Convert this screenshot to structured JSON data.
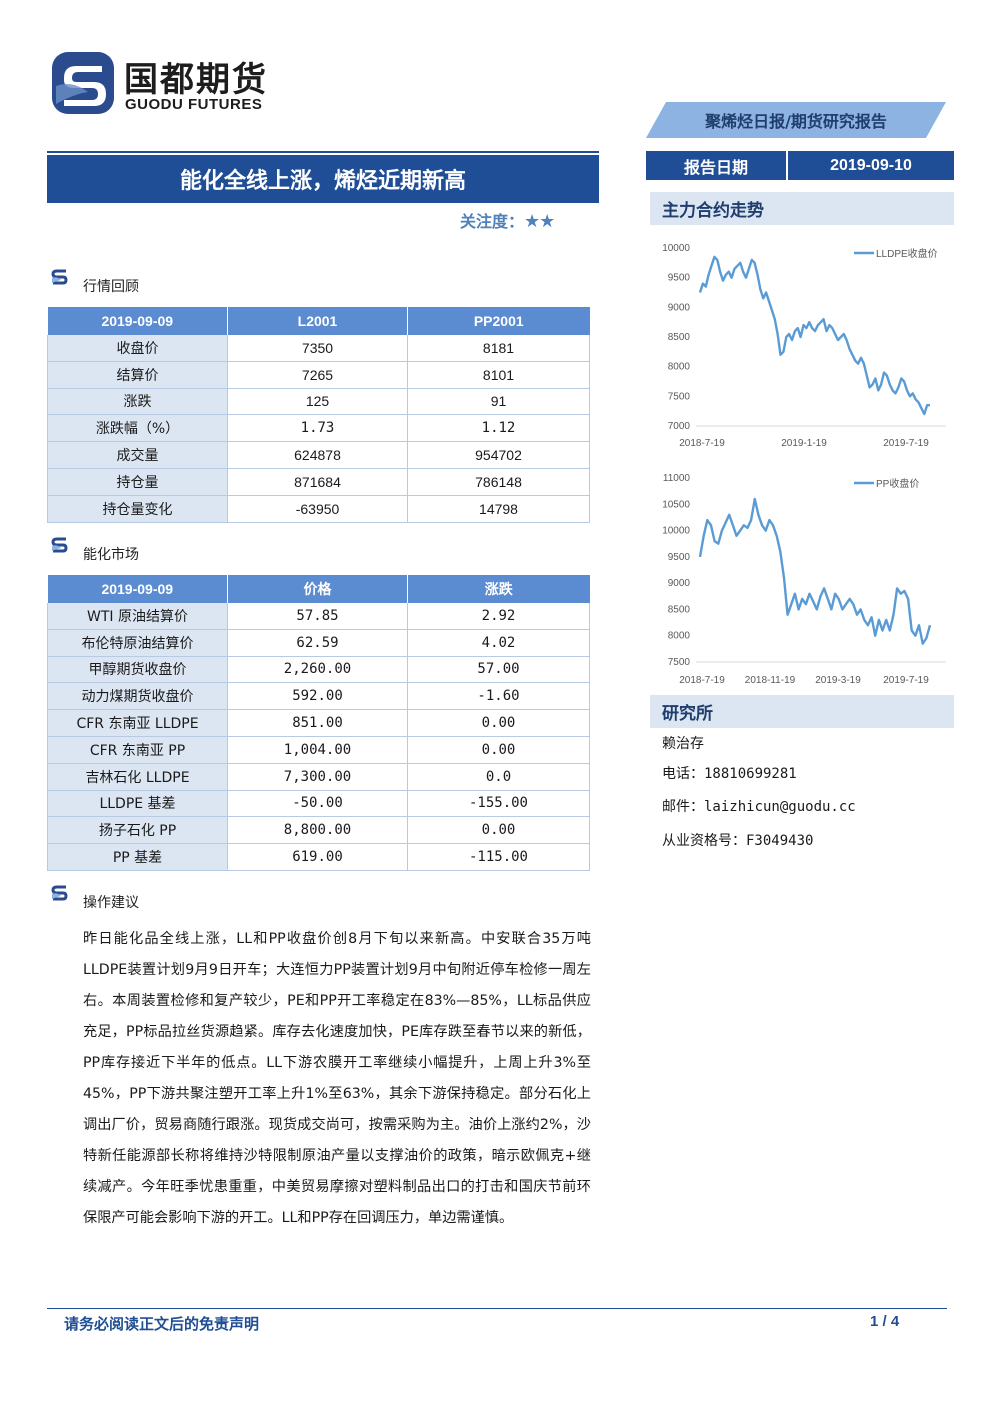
{
  "header": {
    "logo_cn": "国都期货",
    "logo_en": "GUODU FUTURES",
    "report_type": "聚烯烃日报/期货研究报告",
    "date_label": "报告日期",
    "date_value": "2019-09-10"
  },
  "title": {
    "main": "能化全线上涨，烯烃近期新高",
    "attention_label": "关注度：",
    "attention_stars": "★★"
  },
  "market_review": {
    "section_title": "行情回顾",
    "headers": [
      "2019-09-09",
      "L2001",
      "PP2001"
    ],
    "rows": [
      [
        "收盘价",
        "7350",
        "8181"
      ],
      [
        "结算价",
        "7265",
        "8101"
      ],
      [
        "涨跌",
        "125",
        "91"
      ],
      [
        "涨跌幅（%）",
        "1.73",
        "1.12"
      ],
      [
        "成交量",
        "624878",
        "954702"
      ],
      [
        "持仓量",
        "871684",
        "786148"
      ],
      [
        "持仓量变化",
        "-63950",
        "14798"
      ]
    ]
  },
  "energy_market": {
    "section_title": "能化市场",
    "headers": [
      "2019-09-09",
      "价格",
      "涨跌"
    ],
    "rows": [
      [
        "WTI 原油结算价",
        "57.85",
        "2.92"
      ],
      [
        "布伦特原油结算价",
        "62.59",
        "4.02"
      ],
      [
        "甲醇期货收盘价",
        "2,260.00",
        "57.00"
      ],
      [
        "动力煤期货收盘价",
        "592.00",
        "-1.60"
      ],
      [
        "CFR 东南亚 LLDPE",
        "851.00",
        "0.00"
      ],
      [
        "CFR 东南亚 PP",
        "1,004.00",
        "0.00"
      ],
      [
        "吉林石化 LLDPE",
        "7,300.00",
        "0.0"
      ],
      [
        "LLDPE 基差",
        "-50.00",
        "-155.00"
      ],
      [
        "扬子石化 PP",
        "8,800.00",
        "0.00"
      ],
      [
        "PP 基差",
        "619.00",
        "-115.00"
      ]
    ]
  },
  "advice": {
    "section_title": "操作建议",
    "text": "昨日能化品全线上涨，LL和PP收盘价创8月下旬以来新高。中安联合35万吨LLDPE装置计划9月9日开车；大连恒力PP装置计划9月中旬附近停车检修一周左右。本周装置检修和复产较少，PE和PP开工率稳定在83%—85%，LL标品供应充足，PP标品拉丝货源趋紧。库存去化速度加快，PE库存跌至春节以来的新低，PP库存接近下半年的低点。LL下游农膜开工率继续小幅提升，上周上升3%至45%，PP下游共聚注塑开工率上升1%至63%，其余下游保持稳定。部分石化上调出厂价，贸易商随行跟涨。现货成交尚可，按需采购为主。油价上涨约2%，沙特新任能源部长称将维持沙特限制原油产量以支撑油价的政策，暗示欧佩克+继续减产。今年旺季忧患重重，中美贸易摩擦对塑料制品出口的打击和国庆节前环保限产可能会影响下游的开工。LL和PP存在回调压力，单边需谨慎。"
  },
  "sidebar": {
    "trend_title": "主力合约走势",
    "research_title": "研究所",
    "analyst": "赖治存",
    "phone_label": "电话：",
    "phone": "18810699281",
    "email_label": "邮件：",
    "email": "laizhicun@guodu.cc",
    "license_label": "从业资格号：",
    "license": "F3049430"
  },
  "chart_data": [
    {
      "type": "line",
      "title": "",
      "series": [
        {
          "name": "LLDPE收盘价",
          "color": "#5b9bd5",
          "values": [
            9250,
            9400,
            9350,
            9550,
            9700,
            9850,
            9800,
            9600,
            9450,
            9550,
            9600,
            9500,
            9650,
            9700,
            9750,
            9600,
            9500,
            9650,
            9800,
            9750,
            9550,
            9300,
            9150,
            9250,
            9100,
            8950,
            8800,
            8550,
            8200,
            8250,
            8500,
            8550,
            8450,
            8600,
            8650,
            8500,
            8700,
            8650,
            8750,
            8650,
            8600,
            8700,
            8750,
            8800,
            8600,
            8700,
            8650,
            8550,
            8450,
            8500,
            8550,
            8450,
            8300,
            8200,
            8100,
            8050,
            8150,
            8050,
            7850,
            7650,
            7700,
            7800,
            7600,
            7700,
            7900,
            7850,
            7700,
            7600,
            7550,
            7650,
            7800,
            7750,
            7600,
            7500,
            7550,
            7450,
            7400,
            7300,
            7200,
            7350,
            7350
          ]
        }
      ],
      "x_ticks": [
        "2018-7-19",
        "2019-1-19",
        "2019-7-19"
      ],
      "y_ticks": [
        7000,
        7500,
        8000,
        8500,
        9000,
        9500,
        10000
      ],
      "ylim": [
        7000,
        10000
      ],
      "legend": "top-right"
    },
    {
      "type": "line",
      "title": "",
      "series": [
        {
          "name": "PP收盘价",
          "color": "#5b9bd5",
          "values": [
            9500,
            9900,
            10200,
            10100,
            9800,
            9750,
            10000,
            10150,
            10300,
            10100,
            9900,
            10000,
            10100,
            10050,
            10200,
            10600,
            10300,
            10100,
            10000,
            10200,
            10100,
            9900,
            9600,
            9100,
            8400,
            8600,
            8800,
            8500,
            8700,
            8600,
            8800,
            8650,
            8500,
            8750,
            8900,
            8700,
            8500,
            8800,
            8700,
            8500,
            8600,
            8700,
            8600,
            8400,
            8500,
            8300,
            8200,
            8350,
            8000,
            8300,
            8100,
            8300,
            8100,
            8400,
            8900,
            8800,
            8850,
            8700,
            8100,
            8000,
            8200,
            7850,
            7950,
            8200
          ]
        }
      ],
      "x_ticks": [
        "2018-7-19",
        "2018-11-19",
        "2019-3-19",
        "2019-7-19"
      ],
      "y_ticks": [
        7500,
        8000,
        8500,
        9000,
        9500,
        10000,
        10500,
        11000
      ],
      "ylim": [
        7500,
        11000
      ],
      "legend": "top-right"
    }
  ],
  "footer": {
    "disclaimer": "请务必阅读正文后的免责声明",
    "page": "1 / 4"
  }
}
